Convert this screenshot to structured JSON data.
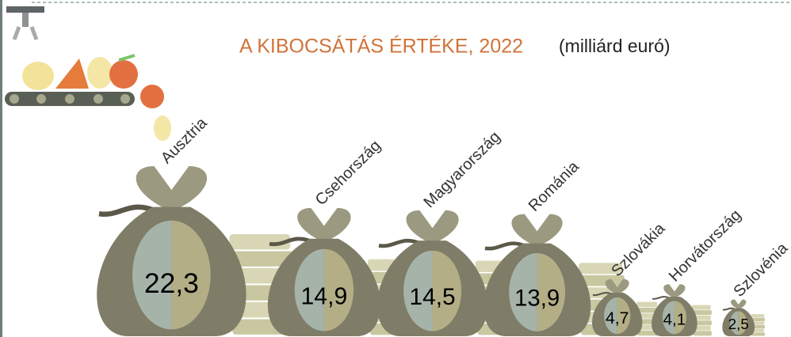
{
  "chart_data": {
    "type": "pictogram",
    "title": "A KIBOCSÁTÁS ÉRTÉKE, 2022",
    "unit": "(milliárd euró)",
    "categories": [
      "Ausztria",
      "Csehország",
      "Magyarország",
      "Románia",
      "Szlovákia",
      "Horvátország",
      "Szlovénia"
    ],
    "values": [
      22.3,
      14.9,
      14.5,
      13.9,
      4.7,
      4.1,
      2.5
    ],
    "value_labels": [
      "22,3",
      "14,9",
      "14,5",
      "13,9",
      "4,7",
      "4,1",
      "2,5"
    ],
    "color": "#7f7d67"
  }
}
